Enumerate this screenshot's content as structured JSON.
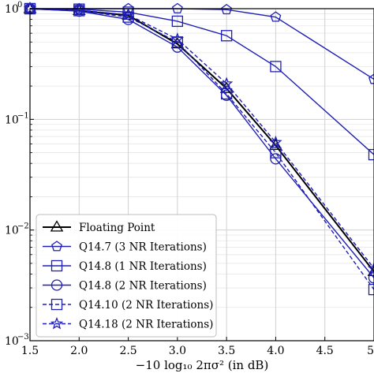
{
  "chart_data": {
    "type": "line",
    "xlabel": "−10 log₁₀ 2πσ² (in dB)",
    "ylabel": "",
    "xlim": [
      1.5,
      5.0
    ],
    "ylim": [
      0.001,
      1
    ],
    "yscale": "log",
    "grid": true,
    "legend_position": "bottom-left",
    "x_ticks": [
      "1.5",
      "2.0",
      "2.5",
      "3.0",
      "3.5",
      "4.0",
      "4.5",
      "5"
    ],
    "y_ticks": [
      {
        "base": "10",
        "exp": "0"
      },
      {
        "base": "10",
        "exp": "−1"
      },
      {
        "base": "10",
        "exp": "−2"
      },
      {
        "base": "10",
        "exp": "−3"
      }
    ],
    "series": [
      {
        "name": "Floating Point",
        "marker": "triangle",
        "color": "#000000",
        "dashed": false,
        "x": [
          1.5,
          2.0,
          2.5,
          3.0,
          3.5,
          4.0,
          5.0
        ],
        "y": [
          1.0,
          0.96,
          0.87,
          0.48,
          0.19,
          0.058,
          0.0042
        ]
      },
      {
        "name": "Q14.7 (3 NR Iterations)",
        "marker": "pentagon",
        "color": "#1f1fb4",
        "dashed": false,
        "x": [
          1.5,
          2.0,
          2.5,
          3.0,
          3.5,
          4.0,
          5.0
        ],
        "y": [
          1.0,
          1.0,
          1.0,
          1.0,
          0.98,
          0.84,
          0.23
        ]
      },
      {
        "name": "Q14.8 (1 NR Iterations)",
        "marker": "square",
        "color": "#1f1fb4",
        "dashed": false,
        "x": [
          1.5,
          2.0,
          2.5,
          3.0,
          3.5,
          4.0,
          5.0
        ],
        "y": [
          1.0,
          0.99,
          0.93,
          0.77,
          0.57,
          0.3,
          0.048
        ]
      },
      {
        "name": "Q14.8 (2 NR Iterations)",
        "marker": "circle",
        "color": "#1f1fb4",
        "dashed": false,
        "x": [
          1.5,
          2.0,
          2.5,
          3.0,
          3.5,
          4.0,
          5.0
        ],
        "y": [
          1.0,
          0.95,
          0.8,
          0.45,
          0.165,
          0.044,
          0.0037
        ]
      },
      {
        "name": "Q14.10 (2 NR Iterations)",
        "marker": "square",
        "color": "#1f1fb4",
        "dashed": true,
        "x": [
          1.5,
          2.0,
          2.5,
          3.0,
          3.5,
          4.0,
          5.0
        ],
        "y": [
          1.0,
          0.96,
          0.84,
          0.5,
          0.17,
          0.05,
          0.0029
        ]
      },
      {
        "name": "Q14.18 (2 NR Iterations)",
        "marker": "star",
        "color": "#1f1fb4",
        "dashed": true,
        "x": [
          1.5,
          2.0,
          2.5,
          3.0,
          3.5,
          4.0,
          5.0
        ],
        "y": [
          1.0,
          0.97,
          0.88,
          0.53,
          0.21,
          0.062,
          0.0045
        ]
      }
    ]
  }
}
